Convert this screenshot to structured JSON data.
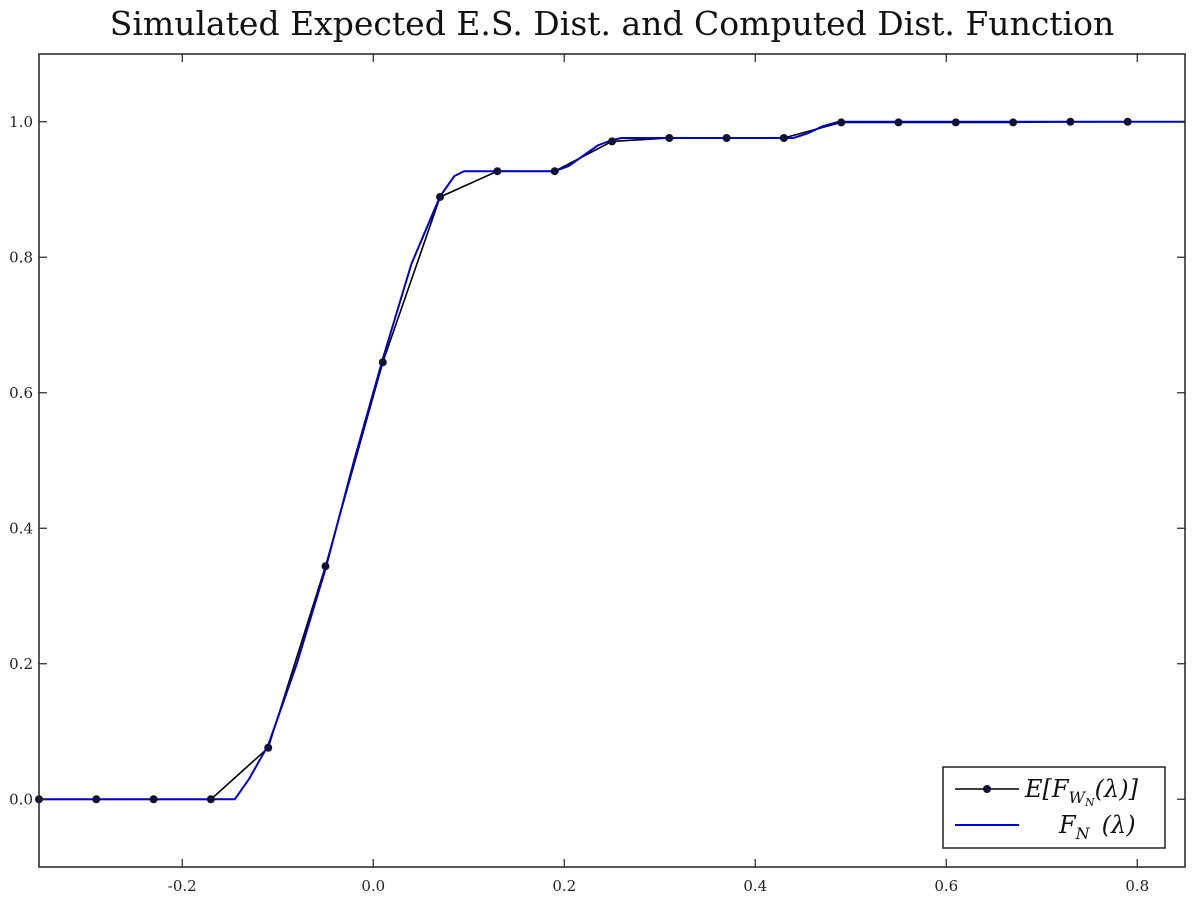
{
  "chart_data": {
    "type": "line",
    "title": "Simulated Expected E.S. Dist. and Computed Dist. Function",
    "xlabel": "",
    "ylabel": "",
    "xlim": [
      -0.35,
      0.85
    ],
    "ylim": [
      -0.1,
      1.1
    ],
    "grid": false,
    "legend_position": "bottom-right",
    "x_ticks": [
      {
        "value": -0.2,
        "label": "-0.2"
      },
      {
        "value": 0.0,
        "label": "0.0"
      },
      {
        "value": 0.2,
        "label": "0.2"
      },
      {
        "value": 0.4,
        "label": "0.4"
      },
      {
        "value": 0.6,
        "label": "0.6"
      },
      {
        "value": 0.8,
        "label": "0.8"
      }
    ],
    "y_ticks": [
      {
        "value": 0.0,
        "label": "0.0"
      },
      {
        "value": 0.2,
        "label": "0.2"
      },
      {
        "value": 0.4,
        "label": "0.4"
      },
      {
        "value": 0.6,
        "label": "0.6"
      },
      {
        "value": 0.8,
        "label": "0.8"
      },
      {
        "value": 1.0,
        "label": "1.0"
      }
    ],
    "series": [
      {
        "name": "E[F_{W_N}(λ)]",
        "legend_label": "E[F",
        "legend_sub": "W",
        "legend_subsub": "N",
        "legend_rest": "(λ)]",
        "color": "#000000",
        "style": "line-with-markers",
        "x": [
          -0.35,
          -0.29,
          -0.23,
          -0.17,
          -0.11,
          -0.05,
          0.01,
          0.07,
          0.13,
          0.19,
          0.25,
          0.31,
          0.37,
          0.43,
          0.49,
          0.55,
          0.61,
          0.67,
          0.73,
          0.79
        ],
        "y": [
          0.0,
          0.0,
          0.0,
          0.0,
          0.076,
          0.344,
          0.645,
          0.889,
          0.927,
          0.927,
          0.971,
          0.976,
          0.976,
          0.976,
          0.999,
          0.999,
          0.999,
          0.999,
          1.0,
          1.0
        ]
      },
      {
        "name": "F_N (λ)",
        "legend_label": "F",
        "legend_sub": "N",
        "legend_rest": "(λ)",
        "color": "#0000cc",
        "style": "line",
        "x": [
          -0.35,
          -0.145,
          -0.13,
          -0.11,
          -0.08,
          -0.05,
          -0.02,
          0.01,
          0.04,
          0.07,
          0.085,
          0.095,
          0.19,
          0.205,
          0.22,
          0.235,
          0.25,
          0.26,
          0.44,
          0.455,
          0.47,
          0.485,
          0.495,
          0.85
        ],
        "y": [
          0.0,
          0.0,
          0.03,
          0.08,
          0.2,
          0.34,
          0.5,
          0.65,
          0.79,
          0.89,
          0.92,
          0.927,
          0.927,
          0.935,
          0.95,
          0.965,
          0.973,
          0.976,
          0.976,
          0.983,
          0.993,
          0.999,
          1.0,
          1.0
        ]
      }
    ]
  }
}
